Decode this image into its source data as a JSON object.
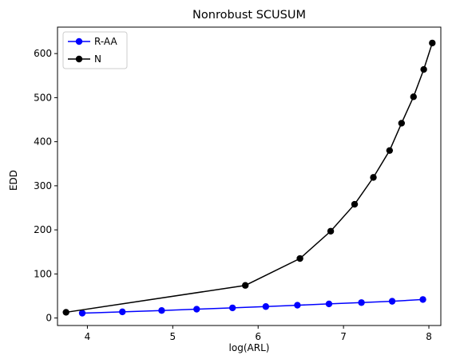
{
  "chart_data": {
    "type": "line",
    "title": "Nonrobust SCUSUM",
    "xlabel": "log(ARL)",
    "ylabel": "EDD",
    "xlim": [
      3.65,
      8.14
    ],
    "ylim": [
      -17,
      660
    ],
    "xticks": [
      4,
      5,
      6,
      7,
      8
    ],
    "yticks": [
      0,
      100,
      200,
      300,
      400,
      500,
      600
    ],
    "grid": false,
    "legend_position": "top-left",
    "series": [
      {
        "name": "R-AA",
        "color": "#0000ff",
        "x": [
          3.94,
          4.41,
          4.87,
          5.28,
          5.7,
          6.09,
          6.46,
          6.83,
          7.21,
          7.57,
          7.93
        ],
        "y": [
          11,
          14,
          17,
          20,
          23,
          26,
          29,
          32,
          35,
          38,
          42
        ]
      },
      {
        "name": "N",
        "color": "#000000",
        "x": [
          3.75,
          5.85,
          6.49,
          6.85,
          7.13,
          7.35,
          7.54,
          7.68,
          7.82,
          7.94,
          8.04
        ],
        "y": [
          13,
          74,
          135,
          197,
          258,
          319,
          380,
          442,
          502,
          564,
          624
        ]
      }
    ]
  }
}
